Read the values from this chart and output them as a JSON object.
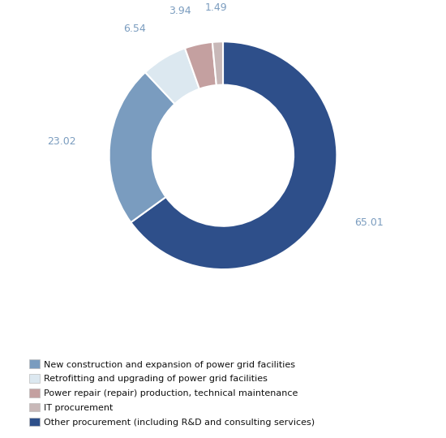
{
  "values": [
    65.01,
    23.02,
    6.54,
    3.94,
    1.49
  ],
  "labels": [
    "65.01",
    "23.02",
    "6.54",
    "3.94",
    "1.49"
  ],
  "colors": [
    "#2e4f8a",
    "#7a9cbf",
    "#dce8f0",
    "#c4a0a0",
    "#c8b8b8"
  ],
  "legend_labels": [
    "New construction and expansion of power grid facilities",
    "Retrofitting and upgrading of power grid facilities",
    "Power repair (repair) production, technical maintenance",
    "IT procurement",
    "Other procurement (including R&D and consulting services)"
  ],
  "legend_colors": [
    "#7a9cbf",
    "#dce8f0",
    "#c4a0a0",
    "#c8b8b8",
    "#2e4f8a"
  ],
  "label_color": "#7a9cbf",
  "wedge_edge_color": "white",
  "background_color": "#ffffff",
  "startangle": 90
}
